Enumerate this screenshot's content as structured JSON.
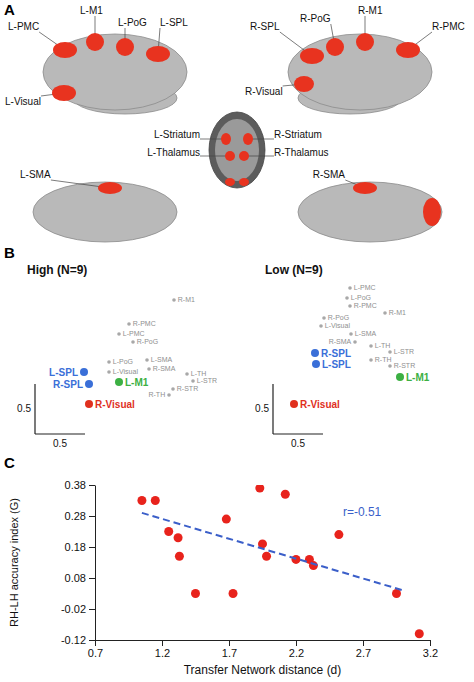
{
  "panel_a": {
    "letter": "A",
    "regions": [
      "L-PMC",
      "L-M1",
      "L-PoG",
      "L-SPL",
      "L-Visual",
      "R-PoG",
      "R-SPL",
      "R-M1",
      "R-PMC",
      "R-Visual",
      "L-Striatum",
      "L-Thalamus",
      "R-Striatum",
      "R-Thalamus",
      "L-SMA",
      "R-SMA"
    ]
  },
  "chart_data": [
    {
      "type": "scatter",
      "panel_label": "B",
      "title": "High (N=9)",
      "tick_labels": false,
      "labels": [
        "L-PMC",
        "L-M1",
        "L-PoG",
        "L-SPL",
        "L-Visual",
        "R-PoG",
        "R-SPL",
        "R-M1",
        "R-PMC",
        "R-Visual",
        "L-STR",
        "L-TH",
        "R-STR",
        "R-TH",
        "L-SMA",
        "R-SMA"
      ],
      "x": [
        0.72,
        0.72,
        0.62,
        0.37,
        0.62,
        0.86,
        0.42,
        1.27,
        0.82,
        0.42,
        1.46,
        1.4,
        1.26,
        1.22,
        1.0,
        1.02
      ],
      "values": [
        0.88,
        0.4,
        0.6,
        0.5,
        0.5,
        0.8,
        0.38,
        1.22,
        0.98,
        0.18,
        0.41,
        0.48,
        0.33,
        0.27,
        0.62,
        0.53
      ],
      "colors": [
        "#a8a8a8",
        "#3cb043",
        "#a8a8a8",
        "#3a6fd8",
        "#a8a8a8",
        "#a8a8a8",
        "#3a6fd8",
        "#a8a8a8",
        "#a8a8a8",
        "#e0301e",
        "#a8a8a8",
        "#a8a8a8",
        "#a8a8a8",
        "#a8a8a8",
        "#a8a8a8",
        "#a8a8a8"
      ],
      "scale_bars": {
        "x": 0.5,
        "y": 0.5
      }
    },
    {
      "type": "scatter",
      "title": "Low (N=9)",
      "tick_labels": false,
      "labels": [
        "L-PMC",
        "L-M1",
        "L-PoG",
        "L-SPL",
        "L-Visual",
        "R-PoG",
        "R-SPL",
        "R-M1",
        "R-PMC",
        "R-Visual",
        "L-STR",
        "L-TH",
        "R-STR",
        "R-TH",
        "L-SMA",
        "R-SMA"
      ],
      "x": [
        0.65,
        1.15,
        0.62,
        0.31,
        0.36,
        0.39,
        0.3,
        1.0,
        0.65,
        0.09,
        1.05,
        0.86,
        1.05,
        0.86,
        0.66,
        0.7
      ],
      "values": [
        1.34,
        0.45,
        1.24,
        0.58,
        0.96,
        1.04,
        0.69,
        1.09,
        1.16,
        0.18,
        0.7,
        0.76,
        0.56,
        0.62,
        0.88,
        0.8
      ],
      "colors": [
        "#a8a8a8",
        "#3cb043",
        "#a8a8a8",
        "#3a6fd8",
        "#a8a8a8",
        "#a8a8a8",
        "#3a6fd8",
        "#a8a8a8",
        "#a8a8a8",
        "#e0301e",
        "#a8a8a8",
        "#a8a8a8",
        "#a8a8a8",
        "#a8a8a8",
        "#a8a8a8",
        "#a8a8a8"
      ],
      "scale_bars": {
        "x": 0.5,
        "y": 0.5
      }
    },
    {
      "type": "scatter",
      "panel_label": "C",
      "xlabel": "Transfer Network distance (d)",
      "ylabel": "RH-LH accuracy index (G)",
      "xlim": [
        0.7,
        3.2
      ],
      "ylim": [
        -0.12,
        0.38
      ],
      "xticks": [
        0.7,
        1.2,
        1.7,
        2.2,
        2.7,
        3.2
      ],
      "yticks": [
        -0.12,
        -0.02,
        0.08,
        0.18,
        0.28,
        0.38
      ],
      "series": [
        {
          "type": "scatter",
          "color": "#e8231c",
          "x": [
            1.05,
            1.15,
            1.25,
            1.32,
            1.33,
            1.45,
            1.68,
            1.73,
            1.93,
            1.95,
            1.98,
            2.12,
            2.2,
            2.3,
            2.33,
            2.52,
            2.95,
            3.12
          ],
          "values": [
            0.33,
            0.33,
            0.23,
            0.21,
            0.15,
            0.03,
            0.27,
            0.03,
            0.37,
            0.19,
            0.15,
            0.35,
            0.14,
            0.14,
            0.12,
            0.22,
            0.03,
            -0.1
          ]
        },
        {
          "type": "line",
          "line_style": "dashed",
          "color": "#3b5fc9",
          "x": [
            1.05,
            3.0
          ],
          "values": [
            0.29,
            0.04
          ]
        }
      ],
      "annotations": [
        {
          "text": "r=-0.51",
          "x": 2.55,
          "y": 0.28
        }
      ]
    }
  ]
}
